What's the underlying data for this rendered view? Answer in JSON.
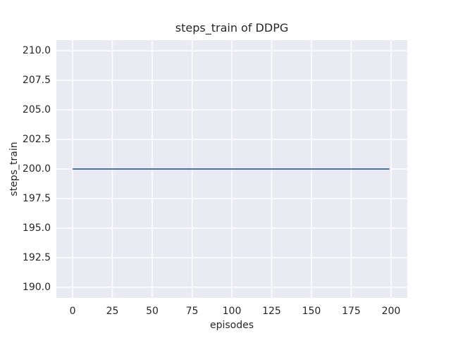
{
  "chart_data": {
    "type": "line",
    "title": "steps_train of DDPG",
    "xlabel": "episodes",
    "ylabel": "steps_train",
    "xlim": [
      -10.2,
      210.2
    ],
    "ylim": [
      189.1,
      210.9
    ],
    "grid": true,
    "legend": "none",
    "plot_bg_color": "#eaeaf2",
    "grid_color": "#ffffff",
    "text_color": "#262626",
    "xticks": {
      "values": [
        0,
        25,
        50,
        75,
        100,
        125,
        150,
        175,
        200
      ],
      "labels": [
        "0",
        "25",
        "50",
        "75",
        "100",
        "125",
        "150",
        "175",
        "200"
      ]
    },
    "yticks": {
      "values": [
        190.0,
        192.5,
        195.0,
        197.5,
        200.0,
        202.5,
        205.0,
        207.5,
        210.0
      ],
      "labels": [
        "190.0",
        "192.5",
        "195.0",
        "197.5",
        "200.0",
        "202.5",
        "205.0",
        "207.5",
        "210.0"
      ]
    },
    "series": [
      {
        "name": "steps_train",
        "color": "#4c72b0",
        "line_width": 2,
        "x": [
          0,
          199
        ],
        "y": [
          200,
          200
        ],
        "description": "constant value 200 for every episode from 0 to 199"
      }
    ]
  }
}
